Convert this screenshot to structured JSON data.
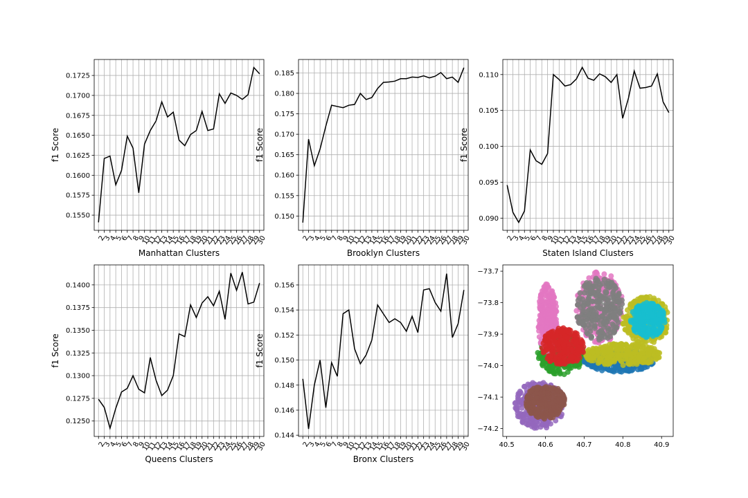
{
  "chart_data": [
    {
      "type": "line",
      "xlabel": "Manhattan Clusters",
      "ylabel": "f1 Score",
      "x": [
        2,
        3,
        4,
        5,
        6,
        7,
        8,
        9,
        10,
        11,
        12,
        13,
        14,
        15,
        16,
        17,
        18,
        19,
        20,
        21,
        22,
        23,
        24,
        25,
        26,
        27,
        28,
        29,
        30
      ],
      "x_ticks": [
        2,
        3,
        4,
        5,
        6,
        7,
        8,
        9,
        10,
        11,
        12,
        13,
        14,
        15,
        16,
        17,
        18,
        19,
        20,
        21,
        22,
        23,
        24,
        25,
        26,
        27,
        28,
        29,
        30
      ],
      "xlim": [
        1.25,
        30.75
      ],
      "series": [
        {
          "values": [
            0.1541,
            0.1621,
            0.1624,
            0.1588,
            0.1606,
            0.1649,
            0.1634,
            0.1578,
            0.1639,
            0.1656,
            0.1668,
            0.1692,
            0.1673,
            0.1679,
            0.1644,
            0.1637,
            0.1651,
            0.1656,
            0.168,
            0.1656,
            0.1658,
            0.1702,
            0.169,
            0.1703,
            0.17,
            0.1695,
            0.1701,
            0.1735,
            0.1727
          ]
        }
      ],
      "y_ticks": [
        0.155,
        0.1575,
        0.16,
        0.1625,
        0.165,
        0.1675,
        0.17,
        0.1725
      ],
      "y_tick_labels": [
        "0.1550",
        "0.1575",
        "0.1600",
        "0.1625",
        "0.1650",
        "0.1675",
        "0.1700",
        "0.1725"
      ],
      "ylim": [
        0.1531,
        0.1745
      ],
      "grid": true
    },
    {
      "type": "line",
      "xlabel": "Brooklyn Clusters",
      "ylabel": "f1 Score",
      "x": [
        2,
        3,
        4,
        5,
        6,
        7,
        8,
        9,
        10,
        11,
        12,
        13,
        14,
        15,
        16,
        17,
        18,
        19,
        20,
        21,
        22,
        23,
        24,
        25,
        26,
        27,
        28,
        29,
        30
      ],
      "x_ticks": [
        2,
        3,
        4,
        5,
        6,
        7,
        8,
        9,
        10,
        11,
        12,
        13,
        14,
        15,
        16,
        17,
        18,
        19,
        20,
        21,
        22,
        23,
        24,
        25,
        26,
        27,
        28,
        29,
        30
      ],
      "xlim": [
        1.25,
        30.75
      ],
      "series": [
        {
          "values": [
            0.1484,
            0.1688,
            0.1623,
            0.1664,
            0.172,
            0.1771,
            0.1768,
            0.1765,
            0.1771,
            0.1773,
            0.18,
            0.1785,
            0.179,
            0.1812,
            0.1827,
            0.1828,
            0.183,
            0.1836,
            0.1836,
            0.184,
            0.1839,
            0.1843,
            0.1838,
            0.1842,
            0.1851,
            0.1836,
            0.184,
            0.1827,
            0.1863
          ]
        }
      ],
      "y_ticks": [
        0.15,
        0.155,
        0.16,
        0.165,
        0.17,
        0.175,
        0.18,
        0.185
      ],
      "y_tick_labels": [
        "0.150",
        "0.155",
        "0.160",
        "0.165",
        "0.170",
        "0.175",
        "0.180",
        "0.185"
      ],
      "ylim": [
        0.1465,
        0.1883
      ],
      "grid": true
    },
    {
      "type": "line",
      "xlabel": "Staten Island Clusters",
      "ylabel": "f1 Score",
      "x": [
        2,
        3,
        4,
        5,
        6,
        7,
        8,
        9,
        10,
        11,
        12,
        13,
        14,
        15,
        16,
        17,
        18,
        19,
        20,
        21,
        22,
        23,
        24,
        25,
        26,
        27,
        28,
        29,
        30
      ],
      "x_ticks": [
        2,
        3,
        4,
        5,
        6,
        7,
        8,
        9,
        10,
        11,
        12,
        13,
        14,
        15,
        16,
        17,
        18,
        19,
        20,
        21,
        22,
        23,
        24,
        25,
        26,
        27,
        28,
        29,
        30
      ],
      "xlim": [
        1.25,
        30.75
      ],
      "series": [
        {
          "values": [
            0.0946,
            0.0908,
            0.0894,
            0.091,
            0.0995,
            0.098,
            0.0975,
            0.099,
            0.11,
            0.1093,
            0.1084,
            0.1086,
            0.1094,
            0.111,
            0.1095,
            0.1092,
            0.1101,
            0.1097,
            0.1089,
            0.11,
            0.1039,
            0.1067,
            0.1105,
            0.1081,
            0.1082,
            0.1084,
            0.1101,
            0.1062,
            0.1047
          ]
        }
      ],
      "y_ticks": [
        0.09,
        0.095,
        0.1,
        0.105,
        0.11
      ],
      "y_tick_labels": [
        "0.090",
        "0.095",
        "0.100",
        "0.105",
        "0.110"
      ],
      "ylim": [
        0.0883,
        0.1121
      ],
      "grid": true
    },
    {
      "type": "line",
      "xlabel": "Queens Clusters",
      "ylabel": "f1 Score",
      "x": [
        2,
        3,
        4,
        5,
        6,
        7,
        8,
        9,
        10,
        11,
        12,
        13,
        14,
        15,
        16,
        17,
        18,
        19,
        20,
        21,
        22,
        23,
        24,
        25,
        26,
        27,
        28,
        29,
        30
      ],
      "x_ticks": [
        2,
        3,
        4,
        5,
        6,
        7,
        8,
        9,
        10,
        11,
        12,
        13,
        14,
        15,
        16,
        17,
        18,
        19,
        20,
        21,
        22,
        23,
        24,
        25,
        26,
        27,
        28,
        29,
        30
      ],
      "xlim": [
        1.25,
        30.75
      ],
      "series": [
        {
          "values": [
            0.1274,
            0.1265,
            0.1242,
            0.1264,
            0.1282,
            0.1286,
            0.13,
            0.1285,
            0.1281,
            0.132,
            0.1295,
            0.1278,
            0.1284,
            0.13,
            0.1346,
            0.1343,
            0.1378,
            0.1364,
            0.138,
            0.1387,
            0.1377,
            0.1393,
            0.1362,
            0.1413,
            0.1394,
            0.1414,
            0.1379,
            0.1381,
            0.1402
          ]
        }
      ],
      "y_ticks": [
        0.125,
        0.1275,
        0.13,
        0.1325,
        0.135,
        0.1375,
        0.14
      ],
      "y_tick_labels": [
        "0.1250",
        "0.1275",
        "0.1300",
        "0.1325",
        "0.1350",
        "0.1375",
        "0.1400"
      ],
      "ylim": [
        0.1233,
        0.1422
      ],
      "grid": true
    },
    {
      "type": "line",
      "xlabel": "Bronx Clusters",
      "ylabel": "f1 Score",
      "x": [
        2,
        3,
        4,
        5,
        6,
        7,
        8,
        9,
        10,
        11,
        12,
        13,
        14,
        15,
        16,
        17,
        18,
        19,
        20,
        21,
        22,
        23,
        24,
        25,
        26,
        27,
        28,
        29,
        30
      ],
      "x_ticks": [
        2,
        3,
        4,
        5,
        6,
        7,
        8,
        9,
        10,
        11,
        12,
        13,
        14,
        15,
        16,
        17,
        18,
        19,
        20,
        21,
        22,
        23,
        24,
        25,
        26,
        27,
        28,
        29,
        30
      ],
      "xlim": [
        1.25,
        30.75
      ],
      "series": [
        {
          "values": [
            0.1485,
            0.1445,
            0.148,
            0.15,
            0.1462,
            0.1498,
            0.1487,
            0.1537,
            0.154,
            0.1509,
            0.1497,
            0.1504,
            0.1516,
            0.1544,
            0.1537,
            0.153,
            0.1533,
            0.153,
            0.1523,
            0.1535,
            0.1522,
            0.1556,
            0.1557,
            0.1546,
            0.1539,
            0.1569,
            0.1518,
            0.1529,
            0.1556
          ]
        }
      ],
      "y_ticks": [
        0.144,
        0.146,
        0.148,
        0.15,
        0.152,
        0.154,
        0.156
      ],
      "y_tick_labels": [
        "0.144",
        "0.146",
        "0.148",
        "0.150",
        "0.152",
        "0.154",
        "0.156"
      ],
      "ylim": [
        0.1439,
        0.1576
      ],
      "grid": true
    },
    {
      "type": "scatter",
      "xlim": [
        40.49,
        40.93
      ],
      "ylim": [
        -74.225,
        -73.68
      ],
      "x_ticks": [
        40.5,
        40.6,
        40.7,
        40.8,
        40.9
      ],
      "x_tick_labels": [
        "40.5",
        "40.6",
        "40.7",
        "40.8",
        "40.9"
      ],
      "y_ticks": [
        -73.7,
        -73.8,
        -73.9,
        -74.0,
        -74.1,
        -74.2
      ],
      "y_tick_labels": [
        "−73.7",
        "−73.8",
        "−73.9",
        "−74.0",
        "−74.1",
        "−74.2"
      ],
      "grid": false,
      "series": [
        {
          "color": "#9467bd",
          "region": {
            "x": [
              40.52,
              40.65
            ],
            "y": [
              -74.2,
              -74.05
            ]
          }
        },
        {
          "color": "#2ca02c",
          "region": {
            "x": [
              40.58,
              40.7
            ],
            "y": [
              -74.03,
              -73.89
            ]
          }
        },
        {
          "color": "#e377c2",
          "region": {
            "x": [
              40.58,
              40.63
            ],
            "y": [
              -73.96,
              -73.74
            ]
          }
        },
        {
          "color": "#e377c2",
          "region": {
            "x": [
              40.68,
              40.8
            ],
            "y": [
              -73.93,
              -73.7
            ]
          }
        },
        {
          "color": "#1f77b4",
          "region": {
            "x": [
              40.7,
              40.88
            ],
            "y": [
              -74.02,
              -73.95
            ]
          }
        },
        {
          "color": "#bcbd22",
          "region": {
            "x": [
              40.7,
              40.9
            ],
            "y": [
              -74.0,
              -73.93
            ]
          }
        },
        {
          "color": "#bcbd22",
          "region": {
            "x": [
              40.8,
              40.92
            ],
            "y": [
              -73.93,
              -73.78
            ]
          }
        },
        {
          "color": "#17becf",
          "region": {
            "x": [
              40.82,
              40.91
            ],
            "y": [
              -73.91,
              -73.8
            ]
          }
        },
        {
          "color": "#d62728",
          "region": {
            "x": [
              40.59,
              40.7
            ],
            "y": [
              -74.0,
              -73.88
            ]
          }
        },
        {
          "color": "#8c564b",
          "region": {
            "x": [
              40.55,
              40.65
            ],
            "y": [
              -74.17,
              -74.06
            ]
          }
        },
        {
          "color": "#7f7f7f",
          "region": {
            "x": [
              40.68,
              40.8
            ],
            "y": [
              -73.92,
              -73.72
            ]
          }
        }
      ]
    }
  ]
}
